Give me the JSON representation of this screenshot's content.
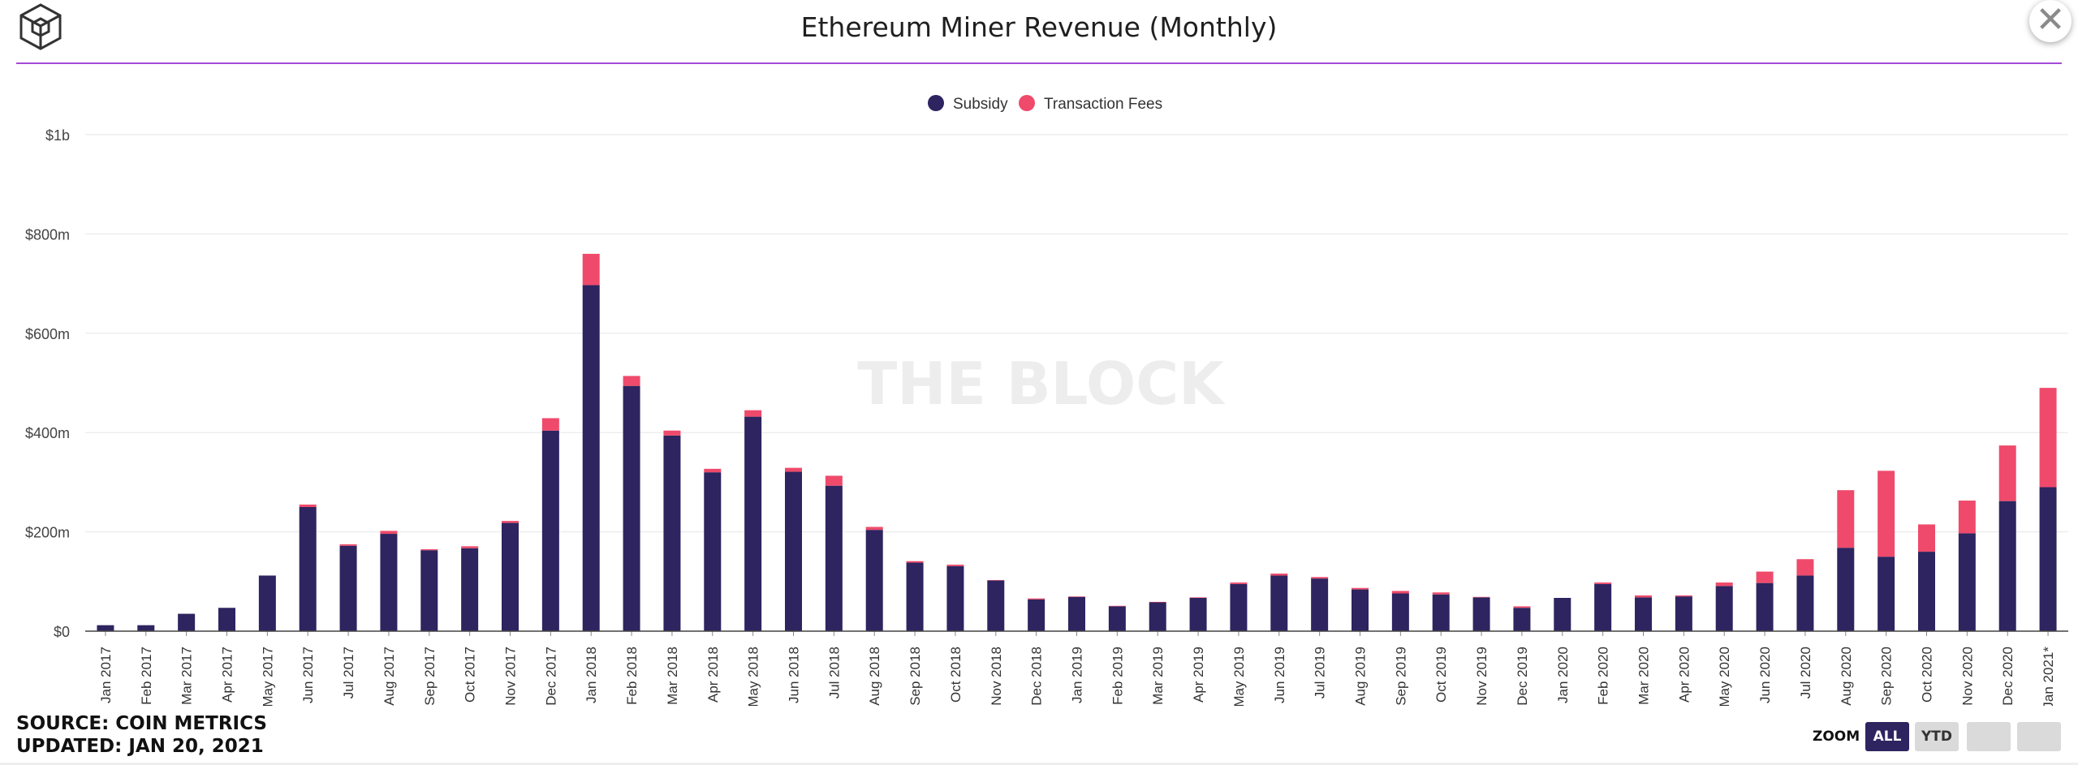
{
  "header": {
    "title": "Ethereum Miner Revenue (Monthly)"
  },
  "colors": {
    "subsidy": "#2d2460",
    "fees": "#ef4a6b",
    "accent_line": "#a44ad8",
    "watermark": "#ededed"
  },
  "watermark": "THE BLOCK",
  "footer": {
    "source": "SOURCE: COIN METRICS",
    "updated": "UPDATED: JAN 20, 2021"
  },
  "zoom": {
    "label": "ZOOM",
    "all": "ALL",
    "ytd": "YTD"
  },
  "chart_data": {
    "type": "bar",
    "stacked": true,
    "title": "Ethereum Miner Revenue (Monthly)",
    "xlabel": "",
    "ylabel": "",
    "ylim": [
      0,
      1000
    ],
    "unit": "USD millions",
    "yticks": [
      "$0",
      "$200m",
      "$400m",
      "$600m",
      "$800m",
      "$1b"
    ],
    "ytick_values": [
      0,
      200,
      400,
      600,
      800,
      1000
    ],
    "legend": {
      "position": "top-center"
    },
    "grid": true,
    "categories": [
      "Jan 2017",
      "Feb 2017",
      "Mar 2017",
      "Apr 2017",
      "May 2017",
      "Jun 2017",
      "Jul 2017",
      "Aug 2017",
      "Sep 2017",
      "Oct 2017",
      "Nov 2017",
      "Dec 2017",
      "Jan 2018",
      "Feb 2018",
      "Mar 2018",
      "Apr 2018",
      "May 2018",
      "Jun 2018",
      "Jul 2018",
      "Aug 2018",
      "Sep 2018",
      "Oct 2018",
      "Nov 2018",
      "Dec 2018",
      "Jan 2019",
      "Feb 2019",
      "Mar 2019",
      "Apr 2019",
      "May 2019",
      "Jun 2019",
      "Jul 2019",
      "Aug 2019",
      "Sep 2019",
      "Oct 2019",
      "Nov 2019",
      "Dec 2019",
      "Jan 2020",
      "Feb 2020",
      "Mar 2020",
      "Apr 2020",
      "May 2020",
      "Jun 2020",
      "Jul 2020",
      "Aug 2020",
      "Sep 2020",
      "Oct 2020",
      "Nov 2020",
      "Dec 2020",
      "Jan 2021*"
    ],
    "series": [
      {
        "name": "Subsidy",
        "values": [
          12,
          12,
          35,
          47,
          112,
          250,
          172,
          196,
          163,
          167,
          218,
          404,
          697,
          494,
          394,
          320,
          432,
          321,
          293,
          204,
          138,
          131,
          102,
          64,
          69,
          50,
          58,
          67,
          95,
          112,
          106,
          84,
          76,
          74,
          68,
          47,
          67,
          95,
          68,
          70,
          91,
          97,
          112,
          168,
          150,
          160,
          197,
          262,
          290
        ]
      },
      {
        "name": "Transaction Fees",
        "values": [
          0,
          0,
          0,
          0,
          0,
          5,
          3,
          6,
          2,
          4,
          4,
          25,
          63,
          20,
          10,
          7,
          13,
          8,
          20,
          6,
          3,
          3,
          1,
          2,
          1,
          1,
          1,
          1,
          3,
          4,
          3,
          3,
          5,
          4,
          1,
          3,
          0,
          3,
          4,
          2,
          7,
          23,
          33,
          116,
          173,
          55,
          66,
          112,
          200
        ]
      }
    ]
  }
}
